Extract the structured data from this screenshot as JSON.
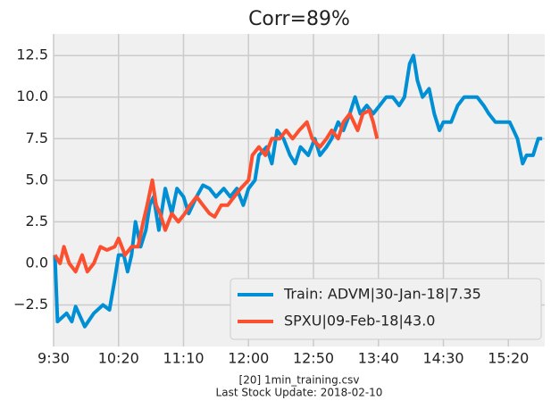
{
  "chart_data": {
    "type": "line",
    "title": "Corr=89%",
    "annotations": [
      "[20] 1min_training.csv",
      "Last Stock Update: 2018-02-10"
    ],
    "xlim": [
      570,
      948
    ],
    "ylim": [
      -5.0,
      13.8
    ],
    "xticks": [
      {
        "value": 570,
        "label": "9:30"
      },
      {
        "value": 620,
        "label": "10:20"
      },
      {
        "value": 670,
        "label": "11:10"
      },
      {
        "value": 720,
        "label": "12:00"
      },
      {
        "value": 770,
        "label": "12:50"
      },
      {
        "value": 820,
        "label": "13:40"
      },
      {
        "value": 870,
        "label": "14:30"
      },
      {
        "value": 920,
        "label": "15:20"
      }
    ],
    "yticks": [
      {
        "value": -2.5,
        "label": "−2.5"
      },
      {
        "value": 0.0,
        "label": "0.0"
      },
      2.5,
      {
        "value": 5.0,
        "label": "5.0"
      },
      7.5,
      {
        "value": 10.0,
        "label": "10.0"
      },
      12.5
    ],
    "grid": true,
    "legend": "lower right",
    "series": [
      {
        "name": "Train: ADVM|30-Jan-18|7.35",
        "color": "#008fd5",
        "x": [
          571,
          573,
          580,
          584,
          587,
          594,
          601,
          608,
          613,
          617,
          620,
          624,
          627,
          630,
          633,
          637,
          641,
          644,
          647,
          651,
          656,
          661,
          665,
          670,
          674,
          680,
          685,
          690,
          695,
          701,
          706,
          711,
          716,
          720,
          725,
          728,
          734,
          738,
          742,
          747,
          752,
          756,
          760,
          766,
          771,
          775,
          780,
          784,
          789,
          793,
          798,
          802,
          806,
          811,
          816,
          821,
          826,
          831,
          836,
          840,
          844,
          847,
          850,
          854,
          859,
          863,
          867,
          870,
          876,
          881,
          886,
          891,
          896,
          901,
          905,
          910,
          915,
          921,
          924,
          927,
          931,
          934,
          939,
          943,
          946
        ],
        "values": [
          0.5,
          -3.5,
          -3.0,
          -3.5,
          -2.6,
          -3.8,
          -3.0,
          -2.5,
          -2.8,
          -1.0,
          0.5,
          0.5,
          -0.5,
          0.5,
          2.5,
          1.0,
          2.0,
          3.5,
          4.0,
          2.0,
          4.5,
          3.0,
          4.5,
          4.0,
          3.0,
          4.0,
          4.7,
          4.5,
          4.0,
          4.5,
          4.0,
          4.5,
          3.5,
          4.5,
          5.0,
          6.5,
          7.0,
          6.0,
          8.0,
          7.5,
          6.5,
          6.0,
          7.0,
          6.5,
          7.5,
          6.5,
          7.0,
          7.5,
          8.5,
          8.0,
          9.0,
          10.0,
          9.0,
          9.5,
          9.0,
          9.5,
          10.0,
          10.0,
          9.5,
          10.0,
          12.0,
          12.5,
          11.0,
          10.0,
          10.5,
          9.0,
          8.0,
          8.5,
          8.5,
          9.5,
          10.0,
          10.0,
          10.0,
          9.5,
          9.0,
          8.5,
          8.5,
          8.5,
          8.0,
          7.5,
          6.0,
          6.5,
          6.5,
          7.5,
          7.5
        ]
      },
      {
        "name": "SPXU|09-Feb-18|43.0",
        "color": "#fc4f30",
        "x": [
          571,
          575,
          578,
          582,
          587,
          592,
          596,
          601,
          606,
          611,
          617,
          620,
          625,
          630,
          635,
          639,
          642,
          646,
          649,
          652,
          656,
          661,
          666,
          671,
          675,
          680,
          685,
          690,
          694,
          699,
          704,
          709,
          714,
          720,
          723,
          728,
          733,
          738,
          744,
          749,
          754,
          759,
          765,
          769,
          775,
          780,
          784,
          789,
          793,
          798,
          804,
          808,
          813,
          816,
          819
        ],
        "values": [
          0.5,
          0.0,
          1.0,
          0.0,
          -0.5,
          0.5,
          -0.5,
          0.0,
          1.0,
          0.8,
          1.0,
          1.5,
          0.5,
          1.0,
          1.0,
          2.5,
          3.5,
          5.0,
          3.5,
          3.0,
          2.0,
          3.0,
          2.5,
          3.0,
          3.5,
          4.0,
          3.5,
          3.0,
          2.8,
          3.5,
          3.5,
          4.0,
          4.5,
          5.0,
          6.5,
          7.0,
          6.5,
          7.5,
          7.5,
          8.0,
          7.5,
          8.0,
          8.5,
          7.5,
          7.0,
          7.5,
          8.0,
          7.5,
          8.5,
          9.0,
          8.0,
          9.0,
          9.2,
          8.5,
          7.5
        ]
      }
    ]
  }
}
